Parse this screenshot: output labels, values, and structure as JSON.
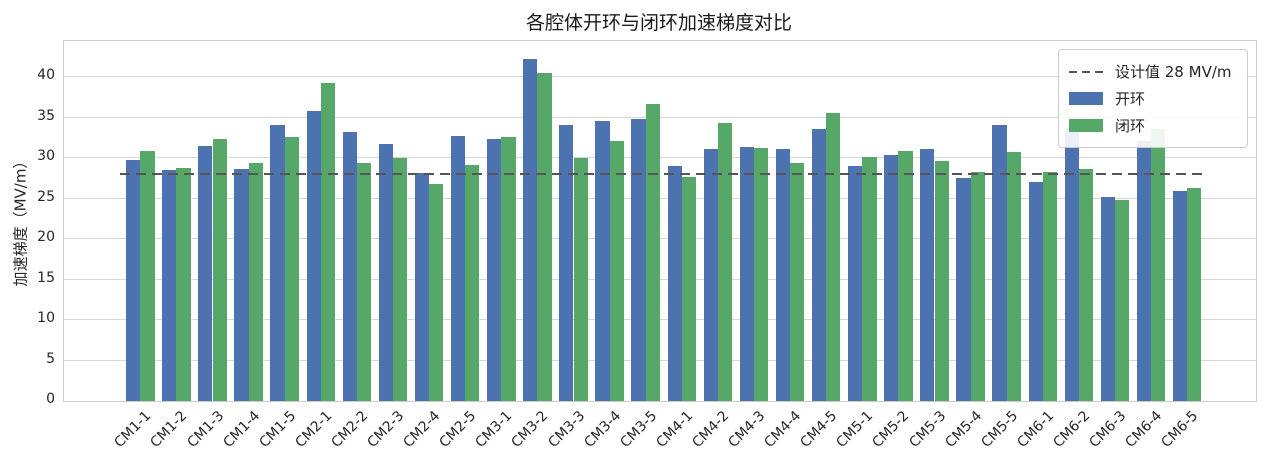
{
  "title": "各腔体开环与闭环加速梯度对比",
  "chart_data": {
    "type": "bar",
    "categories": [
      "CM1-1",
      "CM1-2",
      "CM1-3",
      "CM1-4",
      "CM1-5",
      "CM2-1",
      "CM2-2",
      "CM2-3",
      "CM2-4",
      "CM2-5",
      "CM3-1",
      "CM3-2",
      "CM3-3",
      "CM3-4",
      "CM3-5",
      "CM4-1",
      "CM4-2",
      "CM4-3",
      "CM4-4",
      "CM4-5",
      "CM5-1",
      "CM5-2",
      "CM5-3",
      "CM5-4",
      "CM5-5",
      "CM6-1",
      "CM6-2",
      "CM6-3",
      "CM6-4",
      "CM6-5"
    ],
    "series": [
      {
        "name": "开环",
        "color": "#4C72B0",
        "values": [
          29.8,
          28.6,
          31.5,
          28.7,
          34.1,
          35.9,
          33.3,
          31.8,
          28.2,
          32.7,
          32.4,
          42.3,
          34.1,
          34.6,
          34.8,
          29.1,
          31.1,
          31.4,
          31.2,
          33.6,
          29.0,
          30.4,
          31.2,
          27.6,
          34.1,
          27.1,
          33.6,
          25.2,
          32.2,
          26.0
        ]
      },
      {
        "name": "闭环",
        "color": "#55A868",
        "values": [
          30.9,
          28.8,
          32.4,
          29.4,
          32.6,
          39.3,
          29.4,
          30.1,
          26.8,
          29.2,
          32.6,
          40.6,
          30.1,
          32.2,
          36.7,
          27.7,
          34.4,
          31.3,
          29.4,
          35.6,
          30.2,
          30.9,
          29.7,
          28.3,
          30.8,
          28.3,
          28.7,
          24.9,
          33.6,
          26.3
        ]
      }
    ],
    "reference_line": {
      "label": "设计值 28 MV/m",
      "value": 28,
      "color": "#555555",
      "style": "dashed"
    },
    "ylabel": "加速梯度（MV/m）",
    "xlabel": "",
    "ylim": [
      0,
      44.5
    ],
    "yticks": [
      0,
      5,
      10,
      15,
      20,
      25,
      30,
      35,
      40
    ],
    "grid": "horizontal",
    "legend_position": "upper right",
    "grid_color": "#d6d6d6",
    "spine_color": "#cccccc"
  }
}
